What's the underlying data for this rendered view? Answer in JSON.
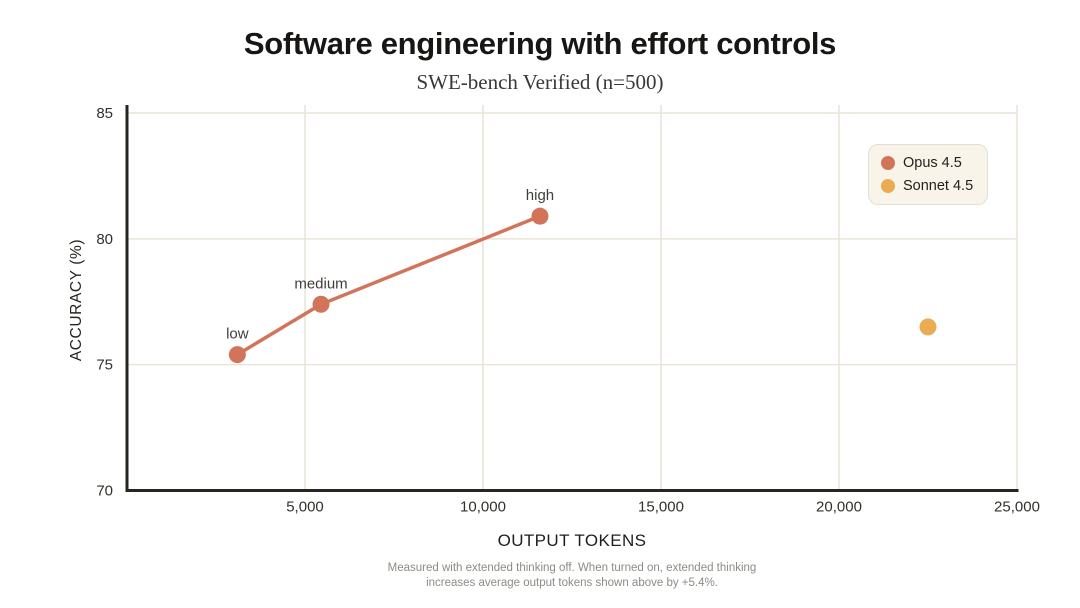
{
  "chart_data": {
    "type": "scatter",
    "title": "Software engineering with effort controls",
    "subtitle": "SWE-bench Verified (n=500)",
    "xlabel": "OUTPUT TOKENS",
    "ylabel": "ACCURACY (%)",
    "xlim": [
      0,
      25000
    ],
    "ylim": [
      70,
      85
    ],
    "x_ticks": [
      5000,
      10000,
      15000,
      20000,
      25000
    ],
    "x_tick_labels": [
      "5,000",
      "10,000",
      "15,000",
      "20,000",
      "25,000"
    ],
    "y_ticks": [
      70,
      75,
      80,
      85
    ],
    "y_tick_labels": [
      "70",
      "75",
      "80",
      "85"
    ],
    "grid": true,
    "legend_position": "top-right",
    "series": [
      {
        "name": "Opus 4.5",
        "color": "#d2745a",
        "style": "line+markers",
        "points": [
          {
            "label": "low",
            "x": 3100,
            "y": 75.4
          },
          {
            "label": "medium",
            "x": 5450,
            "y": 77.4
          },
          {
            "label": "high",
            "x": 11600,
            "y": 80.9
          }
        ]
      },
      {
        "name": "Sonnet 4.5",
        "color": "#eaab52",
        "style": "markers",
        "points": [
          {
            "label": "",
            "x": 22500,
            "y": 76.5
          }
        ]
      }
    ],
    "footnote_lines": [
      "Measured with extended thinking off. When turned on, extended thinking",
      "increases average output tokens shown above by +5.4%."
    ],
    "colors": {
      "axis": "#28241e",
      "grid": "#e9e4d6",
      "tick_label": "#33312c",
      "point_label": "#403e39"
    }
  }
}
